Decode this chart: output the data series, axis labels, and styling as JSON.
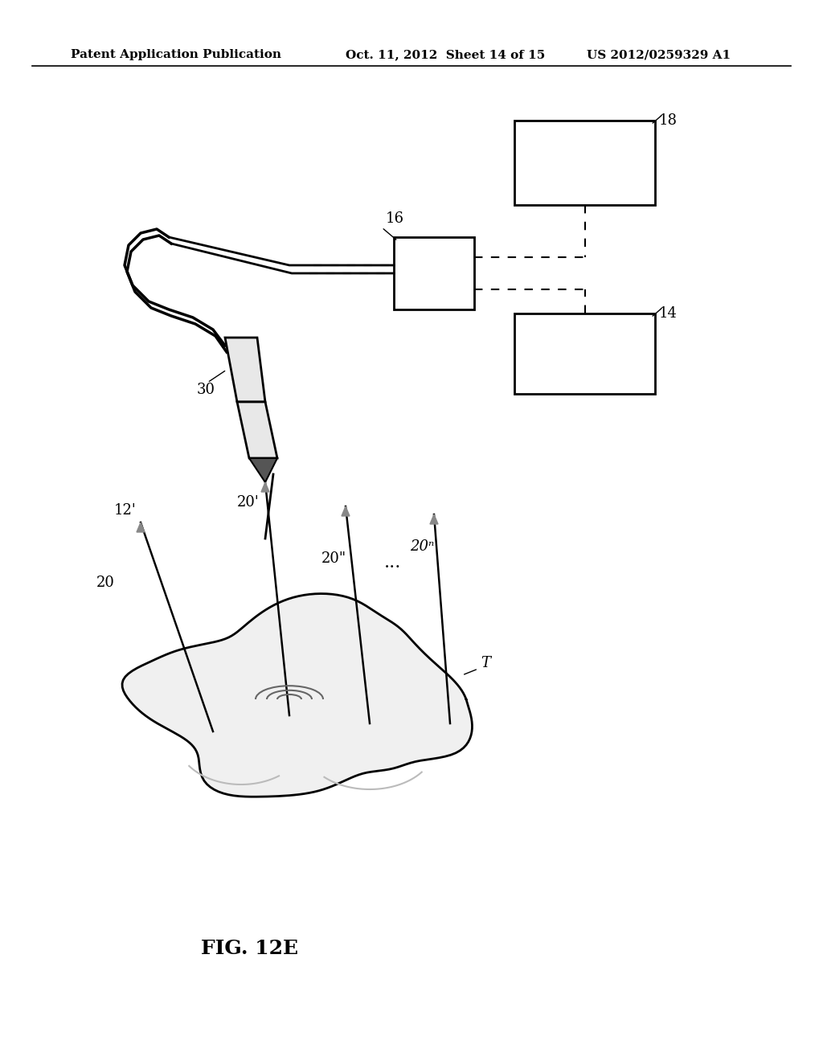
{
  "header_left": "Patent Application Publication",
  "header_mid": "Oct. 11, 2012  Sheet 14 of 15",
  "header_right": "US 2012/0259329 A1",
  "fig_label": "FIG. 12E",
  "box16_label": "16",
  "box18_label": "18",
  "box14_label": "14",
  "label_30": "30",
  "label_20": "20",
  "label_20p": "20'",
  "label_12p": "12'",
  "label_20pp": "20\"",
  "label_20n": "20ⁿ",
  "label_T": "T",
  "bg_color": "#ffffff",
  "line_color": "#000000",
  "box_color": "#000000"
}
